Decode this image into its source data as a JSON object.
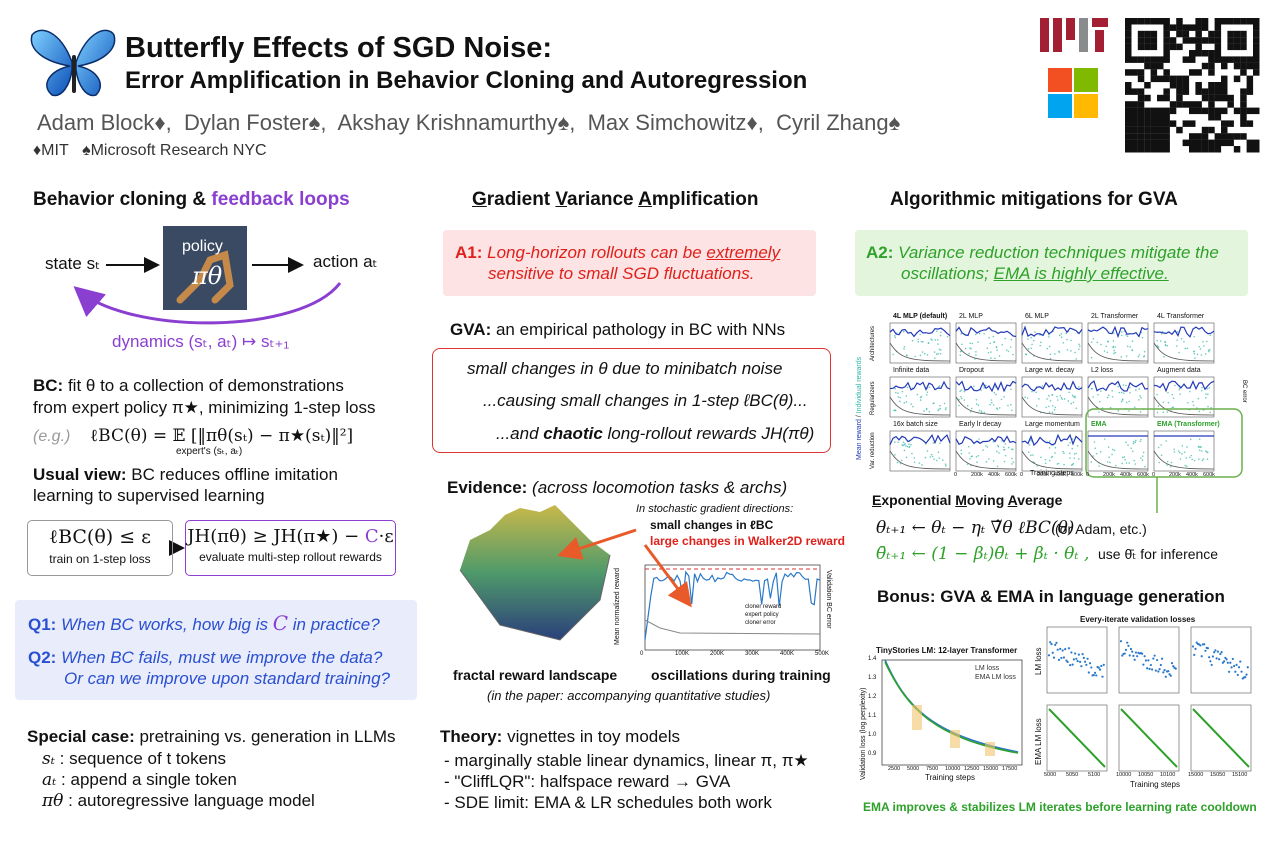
{
  "header": {
    "title": "Butterfly Effects of SGD Noise:",
    "subtitle": "Error Amplification in Behavior Cloning and Autoregression",
    "authors": [
      "Adam Block♦,",
      "Dylan Foster♠,",
      "Akshay Krishnamurthy♠,",
      "Max Simchowitz♦,",
      "Cyril Zhang♠"
    ],
    "affiliations": [
      "♦MIT",
      "♠Microsoft Research NYC"
    ]
  },
  "left": {
    "heading": [
      "Behavior cloning & ",
      "feedback loops"
    ],
    "diagram": {
      "state": "state sₜ",
      "policy": "policy",
      "policy_symbol": "πθ",
      "action": "action aₜ",
      "dynamics": "dynamics (sₜ, aₜ) ↦ sₜ₊₁"
    },
    "bc": {
      "label": "BC:",
      "line1": " fit θ to a collection of demonstrations",
      "line2": "from expert policy π★, minimizing 1-step loss"
    },
    "example": {
      "label": "(e.g.)",
      "formula": "ℓBC(θ) = 𝔼 [‖πθ(sₜ) − π★(sₜ)‖²]",
      "subscript": "expert's (sₜ, aₜ)"
    },
    "usual": {
      "label": "Usual view:",
      "line1": " BC reduces offline imitation",
      "line2": "learning to supervised learning"
    },
    "box1": {
      "formula": "ℓBC(θ) ≤ ε",
      "caption": "train on 1-step loss"
    },
    "box2": {
      "formula": "JH(πθ) ≥ JH(π★) − ",
      "c": "C",
      "rest": "·ε",
      "caption": "evaluate multi-step rollout rewards"
    },
    "q1": {
      "label": "Q1:",
      "pre": " When BC works, how big is ",
      "c": "C",
      "post": " in practice?"
    },
    "q2": {
      "label": "Q2:",
      "line1": " When BC fails, must we improve the data?",
      "line2": "Or can we improve upon standard training?"
    },
    "special": {
      "label": "Special case:",
      "text": " pretraining vs. generation in LLMs",
      "items": [
        {
          "symbol": "sₜ",
          "text": " : sequence of t tokens"
        },
        {
          "symbol": "aₜ",
          "text": " : append a single token"
        },
        {
          "symbol": "πθ",
          "text": " : autoregressive language model"
        }
      ]
    }
  },
  "middle": {
    "heading": [
      "G",
      "radient ",
      "V",
      "ariance ",
      "A",
      "mplification"
    ],
    "a1": {
      "label": "A1:",
      "pre": " Long-horizon rollouts can be ",
      "emph": "extremely",
      "line2": "sensitive to small SGD fluctuations."
    },
    "gva": {
      "label": "GVA:",
      "text": " an empirical pathology in BC with NNs"
    },
    "chain": {
      "line1": "small changes in θ  due to minibatch noise",
      "line2": "...causing small changes in 1-step ℓBC(θ)...",
      "pre3": "...and ",
      "emph3": "chaotic",
      "post3": " long-rollout rewards JH(πθ)"
    },
    "evidence": {
      "label": "Evidence:",
      "text": " (across locomotion tasks & archs)",
      "note": "In stochastic gradient directions:",
      "small": "small changes in ℓBC",
      "large": "large changes in Walker2D reward",
      "legend": [
        "cloner reward",
        "expert policy",
        "cloner error"
      ],
      "ylabel": "Mean normalized reward",
      "y2label": "Validation BC error",
      "xticks": [
        "0",
        "100K",
        "200K",
        "300K",
        "400K",
        "500K"
      ],
      "captions": [
        "fractal reward landscape",
        "oscillations during training"
      ],
      "paper_note": "(in the paper: accompanying quantitative studies)"
    },
    "theory": {
      "label": "Theory:",
      "text": " vignettes in toy models",
      "items": [
        "- marginally stable linear dynamics, linear π, π★",
        "- \"CliffLQR\": halfspace reward → GVA",
        "- SDE limit: EMA & LR schedules both work"
      ]
    }
  },
  "right": {
    "heading": "Algorithmic mitigations for GVA",
    "a2": {
      "label": "A2:",
      "line1": " Variance reduction techniques mitigate the",
      "line2a": "oscillations; ",
      "line2b": "EMA is highly effective."
    },
    "grid": {
      "panels": [
        "4L MLP (default)",
        "2L MLP",
        "6L MLP",
        "2L Transformer",
        "4L Transformer",
        "Infinite data",
        "Dropout",
        "Large wt. decay",
        "L2 loss",
        "Augment data",
        "16x batch size",
        "Early lr decay",
        "Large momentum",
        "EMA",
        "EMA (Transformer)"
      ],
      "rows": [
        "Architectures",
        "Regularizers",
        "Var. reduction"
      ],
      "ylabel_a": "Mean reward",
      "ylabel_sep": " / ",
      "ylabel_b": "Individual rewards",
      "y2label": "BC error",
      "xlabel": "Training steps",
      "xticks": [
        "0",
        "200k",
        "400k",
        "600k"
      ]
    },
    "ema": {
      "heading": [
        "E",
        "xponential ",
        "M",
        "oving ",
        "A",
        "verage"
      ],
      "update": "θₜ₊₁ ← θₜ − ηₜ ∇̃θ ℓBC(θ)",
      "aside": "(or Adam, etc.)",
      "ema_update": "θ̄ₜ₊₁ ← (1 − βₜ)θ̄ₜ + βₜ · θₜ ,",
      "use": "use θ̄ₜ for inference"
    },
    "bonus": {
      "heading": "Bonus: GVA & EMA in language generation",
      "lm_title": "TinyStories LM: 12-layer Transformer",
      "legend": [
        "LM loss",
        "EMA LM loss"
      ],
      "ylabel": "Validation loss (log perplexity)",
      "xlabel": "Training steps",
      "yticks": [
        "1.4",
        "1.3",
        "1.2",
        "1.1",
        "1.0",
        "0.9"
      ],
      "xticks": [
        "2500",
        "5000",
        "7500",
        "10000",
        "12500",
        "15000",
        "17500"
      ],
      "iter_title": "Every-iterate validation losses",
      "row_labels": [
        "LM loss",
        "EMA LM loss"
      ],
      "iter_xticks": [
        [
          "5000",
          "5050",
          "5100"
        ],
        [
          "10000",
          "10050",
          "10100"
        ],
        [
          "15000",
          "15050",
          "15100"
        ]
      ],
      "iter_xlabel": "Training steps",
      "footer": "EMA improves & stabilizes LM iterates before learning rate cooldown"
    }
  }
}
